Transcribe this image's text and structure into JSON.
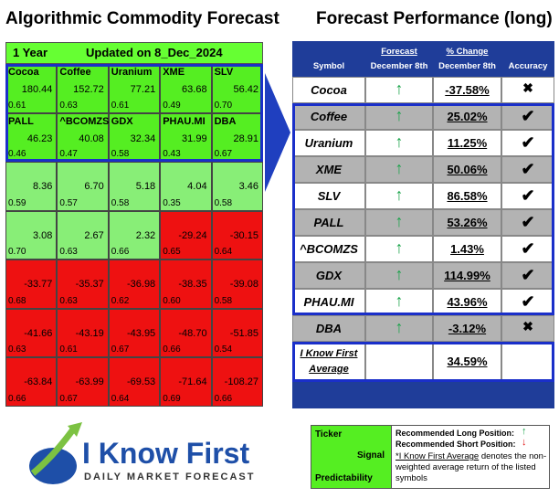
{
  "left": {
    "title": "Algorithmic Commodity Forecast",
    "horizon": "1 Year",
    "updated": "Updated on 8_Dec_2024",
    "rows": [
      [
        {
          "ticker": "Cocoa",
          "signal": "180.44",
          "predictability": "0.61"
        },
        {
          "ticker": "Coffee",
          "signal": "152.72",
          "predictability": "0.63"
        },
        {
          "ticker": "Uranium",
          "signal": "77.21",
          "predictability": "0.61"
        },
        {
          "ticker": "XME",
          "signal": "63.68",
          "predictability": "0.49"
        },
        {
          "ticker": "SLV",
          "signal": "56.42",
          "predictability": "0.70"
        }
      ],
      [
        {
          "ticker": "PALL",
          "signal": "46.23",
          "predictability": "0.46"
        },
        {
          "ticker": "^BCOMZS",
          "signal": "40.08",
          "predictability": "0.47"
        },
        {
          "ticker": "GDX",
          "signal": "32.34",
          "predictability": "0.58"
        },
        {
          "ticker": "PHAU.MI",
          "signal": "31.99",
          "predictability": "0.43"
        },
        {
          "ticker": "DBA",
          "signal": "28.91",
          "predictability": "0.67"
        }
      ],
      [
        {
          "signal": "8.36",
          "predictability": "0.59"
        },
        {
          "signal": "6.70",
          "predictability": "0.57"
        },
        {
          "signal": "5.18",
          "predictability": "0.58"
        },
        {
          "signal": "4.04",
          "predictability": "0.35"
        },
        {
          "signal": "3.46",
          "predictability": "0.58"
        }
      ],
      [
        {
          "signal": "3.08",
          "predictability": "0.70"
        },
        {
          "signal": "2.67",
          "predictability": "0.63"
        },
        {
          "signal": "2.32",
          "predictability": "0.66"
        },
        {
          "signal": "-29.24",
          "predictability": "0.65"
        },
        {
          "signal": "-30.15",
          "predictability": "0.64"
        }
      ],
      [
        {
          "signal": "-33.77",
          "predictability": "0.68"
        },
        {
          "signal": "-35.37",
          "predictability": "0.63"
        },
        {
          "signal": "-36.98",
          "predictability": "0.62"
        },
        {
          "signal": "-38.35",
          "predictability": "0.60"
        },
        {
          "signal": "-39.08",
          "predictability": "0.58"
        }
      ],
      [
        {
          "signal": "-41.66",
          "predictability": "0.63"
        },
        {
          "signal": "-43.19",
          "predictability": "0.61"
        },
        {
          "signal": "-43.95",
          "predictability": "0.67"
        },
        {
          "signal": "-48.70",
          "predictability": "0.66"
        },
        {
          "signal": "-51.85",
          "predictability": "0.54"
        }
      ],
      [
        {
          "signal": "-63.84",
          "predictability": "0.66"
        },
        {
          "signal": "-63.99",
          "predictability": "0.67"
        },
        {
          "signal": "-69.53",
          "predictability": "0.64"
        },
        {
          "signal": "-71.64",
          "predictability": "0.69"
        },
        {
          "signal": "-108.27",
          "predictability": "0.66"
        }
      ]
    ]
  },
  "right": {
    "title": "Forecast Performance (long)",
    "headers": {
      "symbol": "Symbol",
      "forecast": "Forecast",
      "forecast_date": "December 8th",
      "change": "% Change",
      "change_date": "December 8th",
      "accuracy": "Accuracy"
    },
    "rows": [
      {
        "symbol": "Cocoa",
        "change": "-37.58%",
        "hit": false
      },
      {
        "symbol": "Coffee",
        "change": "25.02%",
        "hit": true
      },
      {
        "symbol": "Uranium",
        "change": "11.25%",
        "hit": true
      },
      {
        "symbol": "XME",
        "change": "50.06%",
        "hit": true
      },
      {
        "symbol": "SLV",
        "change": "86.58%",
        "hit": true
      },
      {
        "symbol": "PALL",
        "change": "53.26%",
        "hit": true
      },
      {
        "symbol": "^BCOMZS",
        "change": "1.43%",
        "hit": true
      },
      {
        "symbol": "GDX",
        "change": "114.99%",
        "hit": true
      },
      {
        "symbol": "PHAU.MI",
        "change": "43.96%",
        "hit": true
      },
      {
        "symbol": "DBA",
        "change": "-3.12%",
        "hit": false
      }
    ],
    "average_label_1": "I Know First",
    "average_label_2": "Average",
    "average": "34.59%"
  },
  "legend": {
    "ticker": "Ticker",
    "signal": "Signal",
    "predictability": "Predictability",
    "long": "Recommended Long Position:",
    "short": "Recommended Short Position:",
    "note_link": "*I Know First Average",
    "note_rest": " denotes the non-weighted average return of the listed symbols"
  },
  "logo": {
    "name": "I Know First",
    "tagline": "DAILY MARKET FORECAST"
  }
}
